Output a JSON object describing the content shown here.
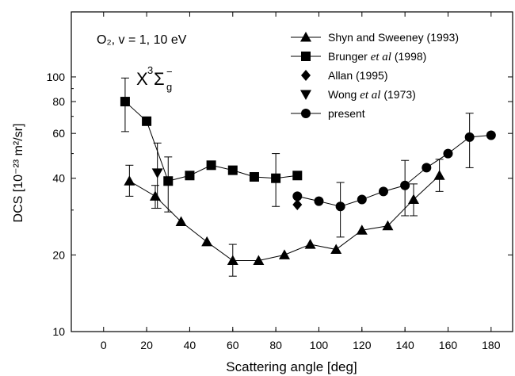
{
  "chart_data": {
    "type": "scatter",
    "title": "",
    "xlabel": "Scattering angle [deg]",
    "ylabel": "DCS [10⁻²³ m²/sr]",
    "xlim": [
      -15,
      190
    ],
    "ylim": [
      10,
      180
    ],
    "yscale": "log",
    "grid": false,
    "legend_position": "top-right",
    "x_ticks": [
      0,
      20,
      40,
      60,
      80,
      100,
      120,
      140,
      160,
      180
    ],
    "y_ticks": [
      10,
      20,
      40,
      60,
      80,
      100
    ],
    "annotations": {
      "line1": "O₂,  v = 1,  10 eV",
      "state_main": "X",
      "state_sup": "3",
      "state_sigma": "Σ",
      "state_sub": "g",
      "state_minus": "−"
    },
    "series": [
      {
        "name": "Shyn and Sweeney (1993)",
        "name_main": "Shyn and Sweeney (1993)",
        "name_italic": "",
        "name_rest": "",
        "marker": "triangle-up",
        "line": true,
        "x": [
          12,
          24,
          36,
          48,
          60,
          72,
          84,
          96,
          108,
          120,
          132,
          144,
          156
        ],
        "y": [
          39,
          34,
          27,
          22.5,
          19,
          19,
          20,
          22,
          21,
          25,
          26,
          33,
          41
        ],
        "err": [
          [
            34,
            45
          ],
          [
            30.5,
            37.5
          ],
          null,
          null,
          [
            16.5,
            22
          ],
          null,
          null,
          null,
          null,
          null,
          null,
          [
            28.5,
            38
          ],
          [
            35.5,
            47.5
          ]
        ]
      },
      {
        "name": "Brunger et al (1998)",
        "name_main": "Brunger ",
        "name_italic": "et al",
        "name_rest": " (1998)",
        "marker": "square",
        "line": true,
        "x": [
          10,
          20,
          30,
          40,
          50,
          60,
          70,
          80,
          90
        ],
        "y": [
          80,
          67,
          39,
          41,
          45,
          43,
          40.5,
          40,
          41
        ],
        "err": [
          [
            61,
            99
          ],
          null,
          [
            29.5,
            48.5
          ],
          null,
          null,
          null,
          null,
          [
            31,
            50
          ],
          null
        ]
      },
      {
        "name": "Allan (1995)",
        "name_main": "Allan (1995)",
        "name_italic": "",
        "name_rest": "",
        "marker": "diamond",
        "line": false,
        "x": [
          90
        ],
        "y": [
          31.5
        ],
        "err": [
          null
        ]
      },
      {
        "name": "Wong et al (1973)",
        "name_main": "Wong ",
        "name_italic": "et al",
        "name_rest": " (1973)",
        "marker": "triangle-down",
        "line": false,
        "x": [
          25
        ],
        "y": [
          42
        ],
        "err": [
          [
            30.5,
            55
          ]
        ]
      },
      {
        "name": "present",
        "name_main": "present",
        "name_italic": "",
        "name_rest": "",
        "marker": "circle",
        "line": true,
        "x": [
          90,
          100,
          110,
          120,
          130,
          140,
          150,
          160,
          170,
          180
        ],
        "y": [
          34,
          32.5,
          31,
          33,
          35.5,
          37.5,
          44,
          50,
          58,
          59
        ],
        "err": [
          null,
          null,
          [
            23.5,
            38.5
          ],
          null,
          null,
          [
            28.5,
            47
          ],
          null,
          null,
          [
            44,
            72
          ],
          null
        ]
      }
    ]
  }
}
